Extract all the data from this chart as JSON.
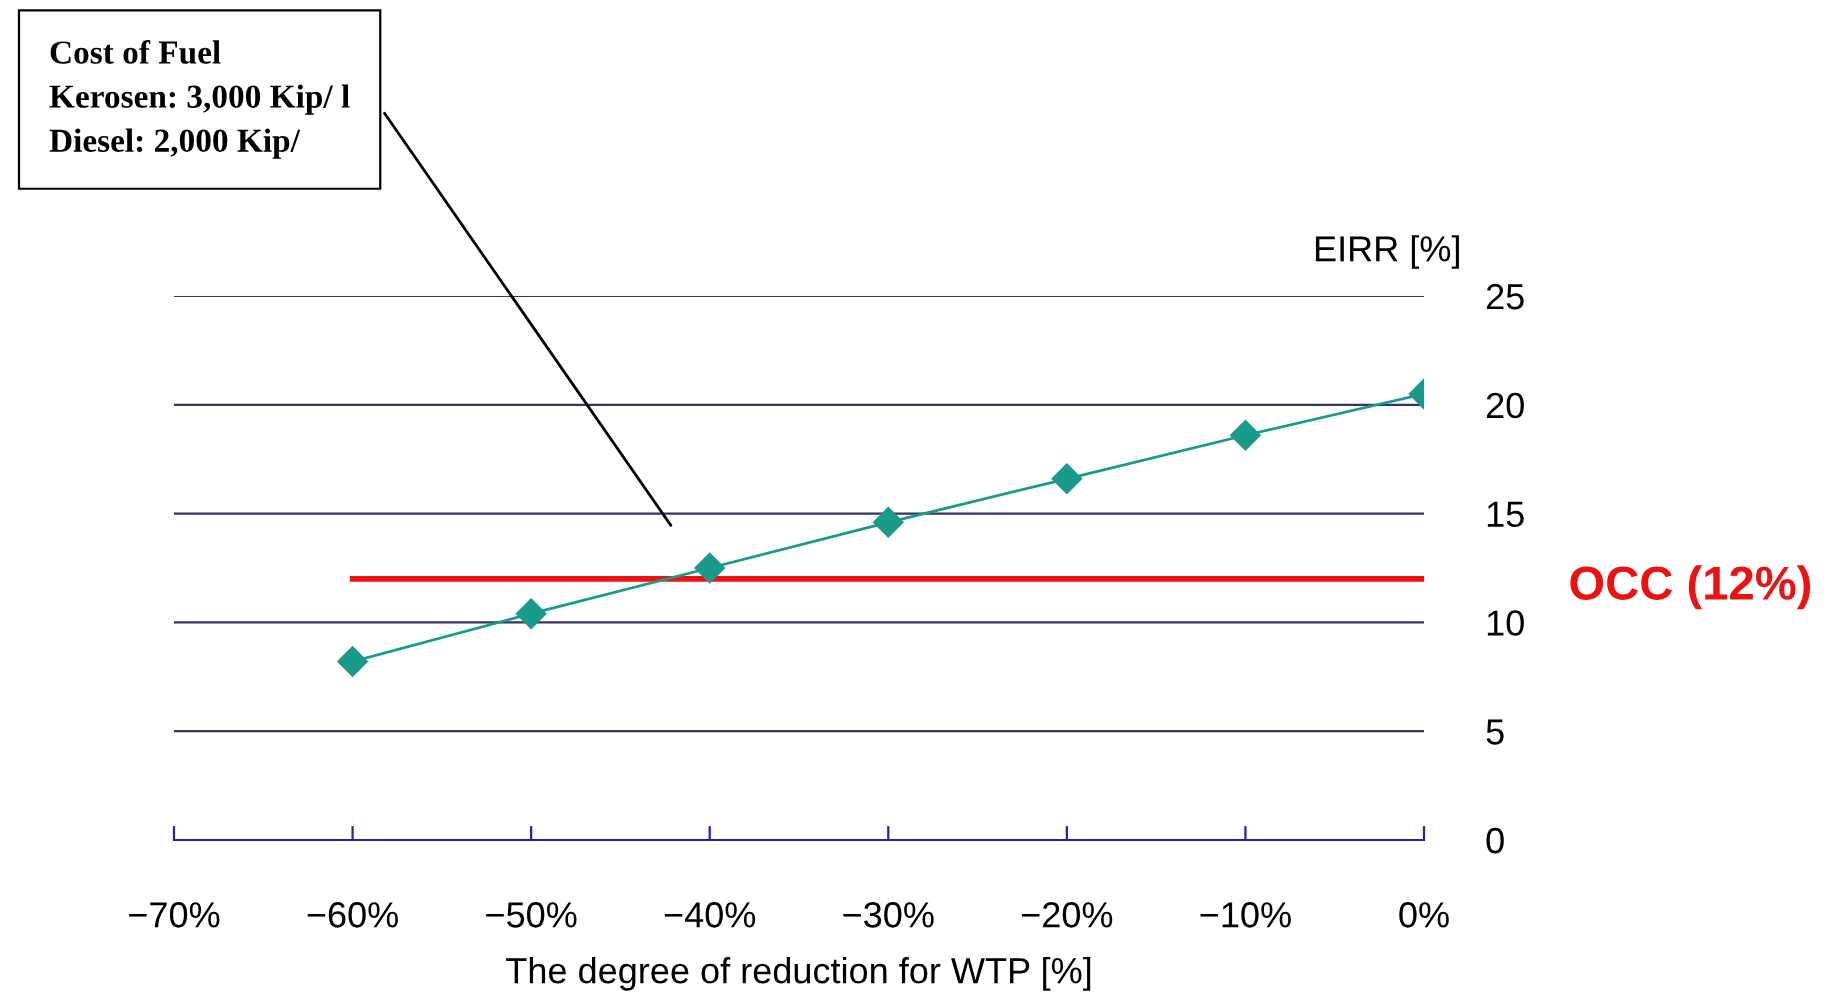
{
  "chart_data": {
    "type": "line",
    "x": [
      -60,
      -50,
      -40,
      -30,
      -20,
      -10,
      0
    ],
    "series": [
      {
        "color": "#1a9a8a",
        "values": [
          8.2,
          10.4,
          12.5,
          14.6,
          16.6,
          18.6,
          20.5
        ]
      }
    ],
    "marker": "diamond",
    "xlim": [
      -70,
      0
    ],
    "xticks": [
      {
        "value": -70,
        "label": "−70%"
      },
      {
        "value": -60,
        "label": "−60%"
      },
      {
        "value": -50,
        "label": "−50%"
      },
      {
        "value": -40,
        "label": "−40%"
      },
      {
        "value": -30,
        "label": "−30%"
      },
      {
        "value": -20,
        "label": "−20%"
      },
      {
        "value": -10,
        "label": "−10%"
      },
      {
        "value": 0,
        "label": "0%"
      }
    ],
    "ylim": [
      0,
      25
    ],
    "yticks": [
      0,
      5,
      10,
      15,
      20,
      25
    ],
    "grid": "y",
    "xlabel": "The degree of reduction for WTP [%]",
    "ylabel": "EIRR [%]",
    "ref_lines": [
      {
        "axis": "y",
        "value": 12,
        "label": "OCC (12%)",
        "color": "#ee1111"
      }
    ],
    "annotations": [
      "Cost of Fuel\nKerosen: 3,000 Kip/ l\nDiesel: 2,000 Kip/"
    ]
  }
}
